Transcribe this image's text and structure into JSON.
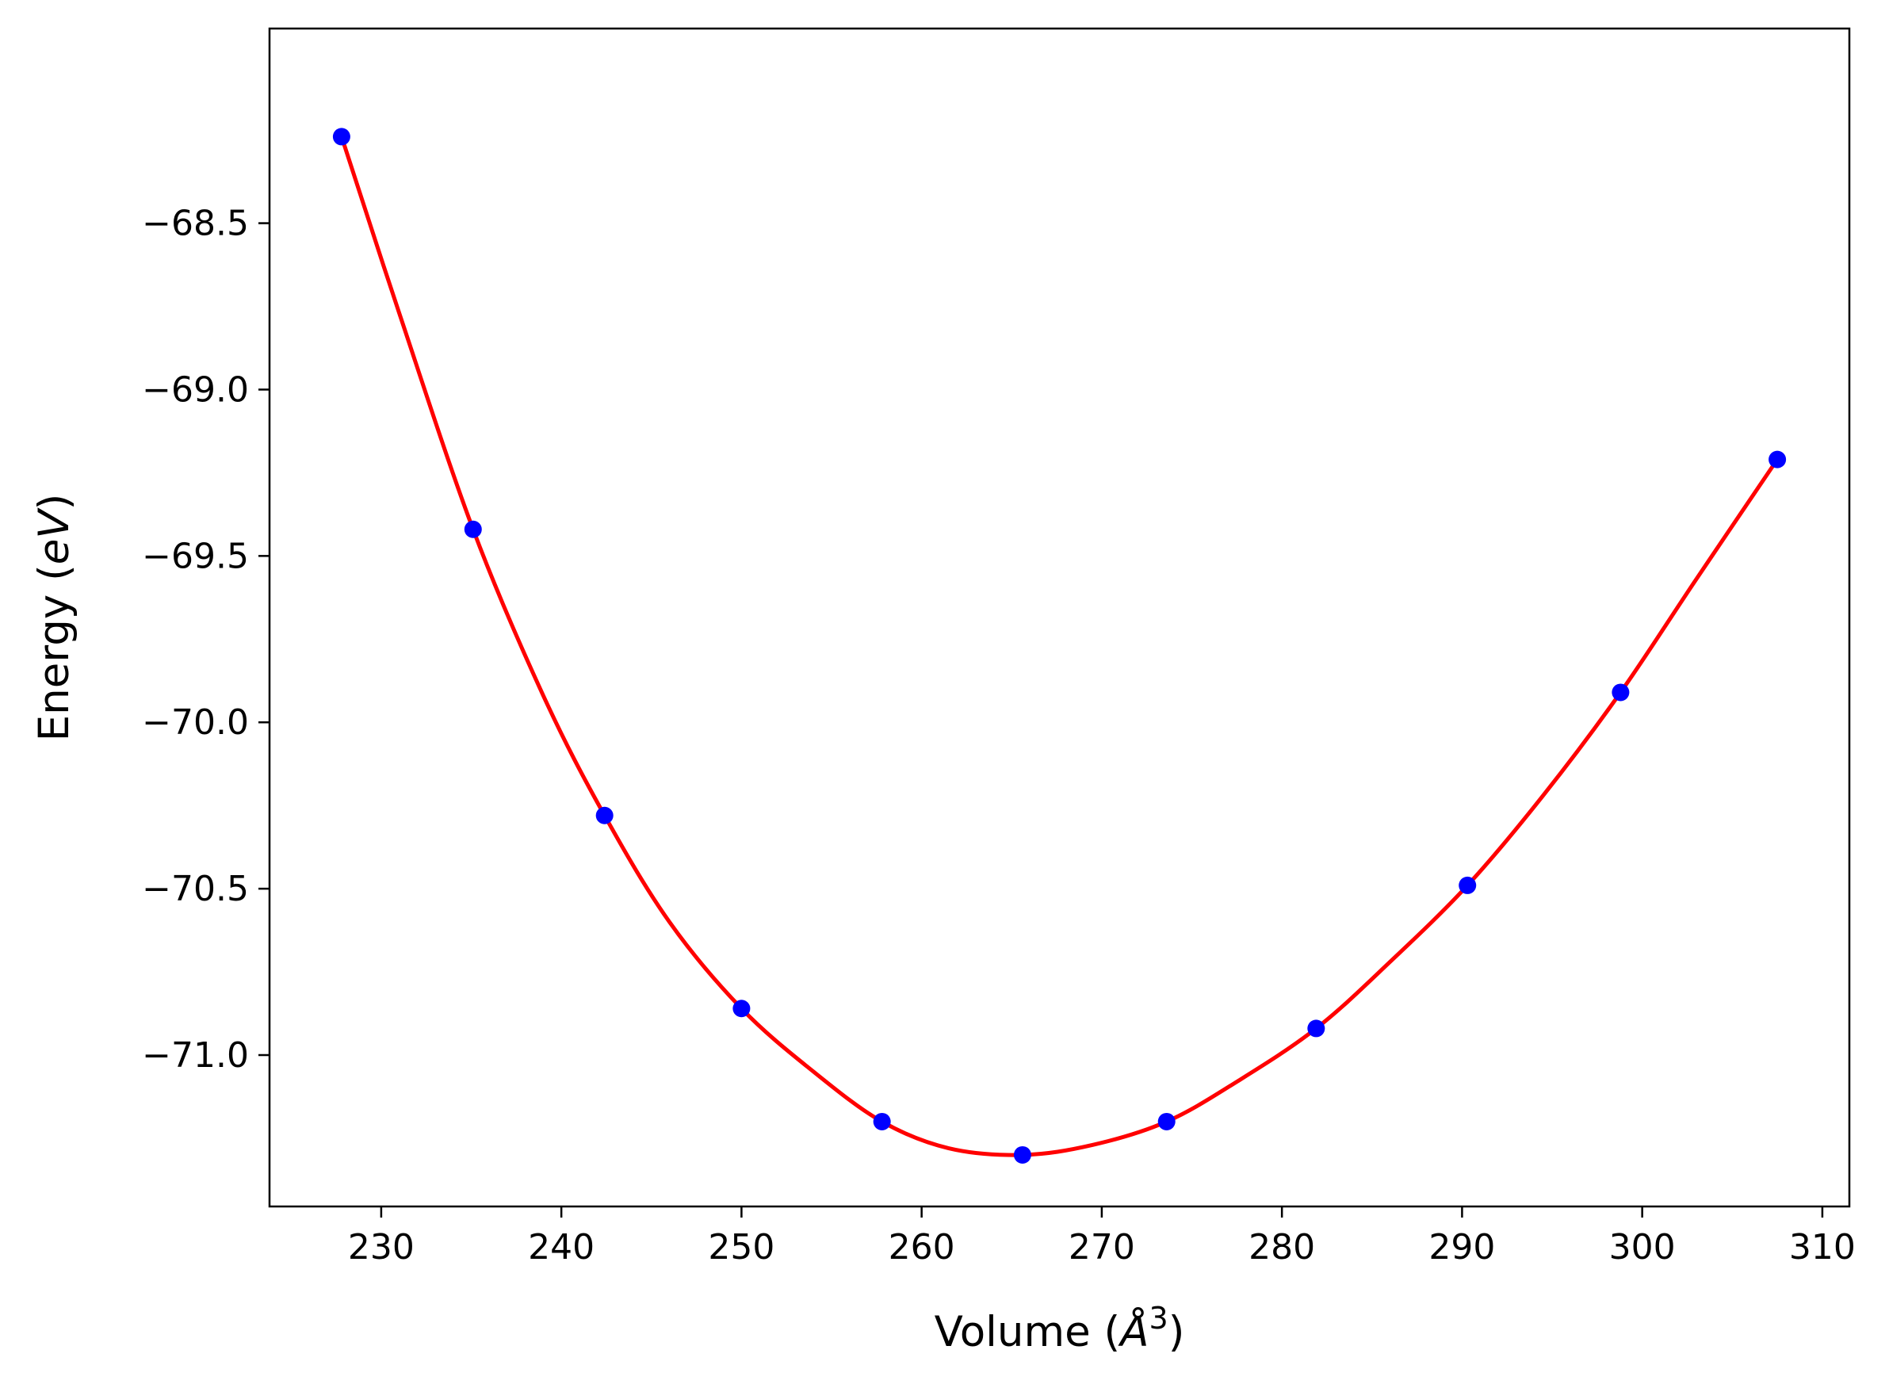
{
  "chart_data": {
    "type": "line",
    "title": "",
    "xlabel": "Volume ($\\AA^3$)",
    "ylabel": "Energy ($eV$)",
    "xlim": [
      223.8,
      311.5
    ],
    "ylim": [
      -71.455,
      -67.915
    ],
    "grid": false,
    "x_ticks": [
      230,
      240,
      250,
      260,
      270,
      280,
      290,
      300,
      310
    ],
    "x_tick_labels": [
      "230",
      "240",
      "250",
      "260",
      "270",
      "280",
      "290",
      "300",
      "310"
    ],
    "y_ticks": [
      -68.5,
      -69.0,
      -69.5,
      -70.0,
      -70.5,
      -71.0
    ],
    "y_tick_labels": [
      "−68.5",
      "−69.0",
      "−69.5",
      "−70.0",
      "−70.5",
      "−71.0"
    ],
    "series": [
      {
        "kind": "points",
        "color": "#0000ff",
        "marker": "circle",
        "x": [
          227.8,
          235.1,
          242.4,
          250.0,
          257.8,
          265.6,
          273.6,
          281.9,
          290.3,
          298.8,
          307.5
        ],
        "y": [
          -68.24,
          -69.42,
          -70.28,
          -70.86,
          -71.2,
          -71.3,
          -71.2,
          -70.92,
          -70.49,
          -69.91,
          -69.21
        ]
      },
      {
        "kind": "fit-curve",
        "color": "#ff0000",
        "x": [
          227.8,
          231.0,
          235.1,
          239.0,
          242.4,
          246.0,
          250.0,
          254.0,
          257.8,
          261.5,
          265.6,
          269.5,
          273.6,
          277.5,
          281.9,
          286.0,
          290.3,
          294.5,
          298.8,
          303.0,
          307.5
        ],
        "y": [
          -68.24,
          -68.77,
          -69.42,
          -69.92,
          -70.28,
          -70.6,
          -70.86,
          -71.05,
          -71.2,
          -71.28,
          -71.3,
          -71.27,
          -71.2,
          -71.08,
          -70.92,
          -70.72,
          -70.49,
          -70.22,
          -69.91,
          -69.57,
          -69.21
        ]
      }
    ]
  }
}
